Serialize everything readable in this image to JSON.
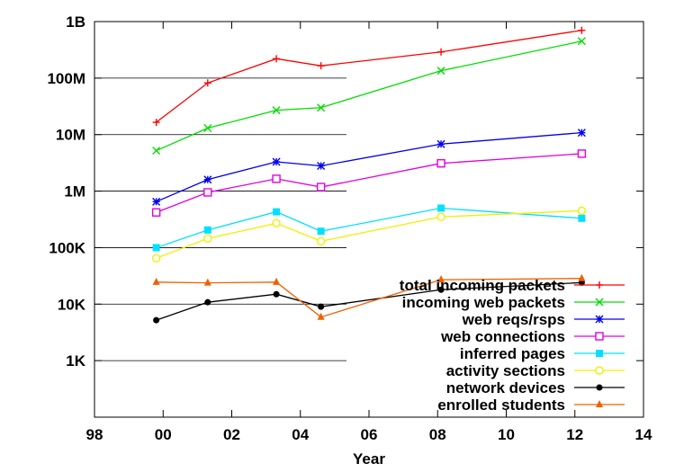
{
  "chart_data": {
    "type": "line",
    "title": "",
    "xlabel": "Year",
    "ylabel": "",
    "x_scale": "linear",
    "y_scale": "log",
    "xlim": [
      1998,
      2014
    ],
    "ylim": [
      100,
      1000000000
    ],
    "x_ticks": [
      {
        "value": 1998,
        "label": "98"
      },
      {
        "value": 2000,
        "label": "00"
      },
      {
        "value": 2002,
        "label": "02"
      },
      {
        "value": 2004,
        "label": "04"
      },
      {
        "value": 2006,
        "label": "06"
      },
      {
        "value": 2008,
        "label": "08"
      },
      {
        "value": 2010,
        "label": "10"
      },
      {
        "value": 2012,
        "label": "12"
      },
      {
        "value": 2014,
        "label": "14"
      }
    ],
    "y_ticks": [
      {
        "value": 1000,
        "label": "1K"
      },
      {
        "value": 10000,
        "label": "10K"
      },
      {
        "value": 100000,
        "label": "100K"
      },
      {
        "value": 1000000,
        "label": "1M"
      },
      {
        "value": 10000000,
        "label": "10M"
      },
      {
        "value": 100000000,
        "label": "100M"
      },
      {
        "value": 1000000000,
        "label": "1B"
      }
    ],
    "grid": false,
    "legend_position": "bottom-right",
    "x": [
      1999.8,
      2001.3,
      2003.3,
      2004.6,
      2008.1,
      2012.2
    ],
    "series": [
      {
        "name": "total incoming packets",
        "color": "#ff0000",
        "marker": "plus",
        "values": [
          16500000,
          82000000,
          220000000,
          165000000,
          290000000,
          700000000
        ]
      },
      {
        "name": "incoming web packets",
        "color": "#00dd00",
        "marker": "cross",
        "values": [
          5200000,
          13000000,
          27000000,
          30000000,
          135000000,
          450000000
        ]
      },
      {
        "name": "web reqs/rsps",
        "color": "#0000ee",
        "marker": "star",
        "values": [
          650000,
          1600000,
          3300000,
          2800000,
          6800000,
          10800000
        ]
      },
      {
        "name": "web connections",
        "color": "#e000e0",
        "marker": "open-square",
        "values": [
          420000,
          950000,
          1650000,
          1180000,
          3100000,
          4600000
        ]
      },
      {
        "name": "inferred pages",
        "color": "#00e0ff",
        "marker": "filled-square",
        "values": [
          100000,
          205000,
          430000,
          195000,
          500000,
          330000
        ]
      },
      {
        "name": "activity sections",
        "color": "#f0f000",
        "marker": "open-circle",
        "values": [
          65000,
          145000,
          270000,
          130000,
          350000,
          450000
        ]
      },
      {
        "name": "network devices",
        "color": "#000000",
        "marker": "filled-circle",
        "values": [
          5200,
          10800,
          15000,
          9000,
          18000,
          24000
        ]
      },
      {
        "name": "enrolled students",
        "color": "#f06000",
        "marker": "filled-triangle",
        "values": [
          24500,
          23800,
          24500,
          5900,
          27000,
          28500
        ]
      }
    ]
  }
}
